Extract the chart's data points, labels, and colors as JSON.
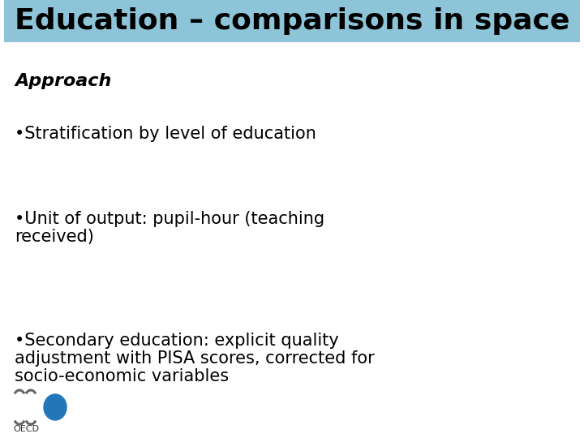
{
  "title": "Education – comparisons in space",
  "title_bg_color": "#8ec4d8",
  "title_text_color": "#000000",
  "bg_color": "#ffffff",
  "approach_word": "Approach",
  "approach_colon": ":",
  "bullets": [
    "•Stratification by level of education",
    "•Unit of output: pupil-hour (teaching\nreceived)",
    "•Secondary education: explicit quality\nadjustment with PISA scores, corrected for\nsocio-economic variables"
  ],
  "body_text_color": "#000000",
  "title_fontsize": 26,
  "approach_fontsize": 16,
  "bullet_fontsize": 15,
  "oecd_text_color": "#555555",
  "oecd_blue": "#2277bb",
  "oecd_wave_color": "#666666"
}
